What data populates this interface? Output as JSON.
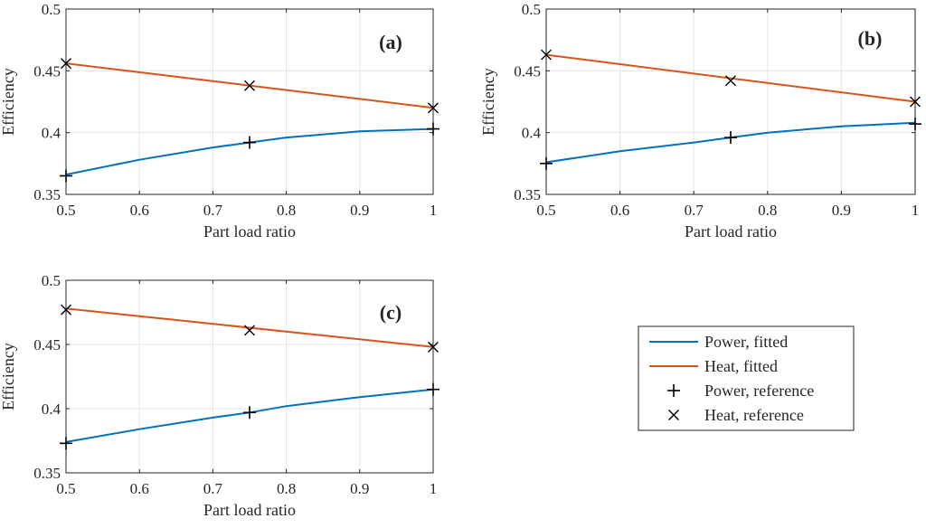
{
  "chart_data": [
    {
      "type": "line",
      "panel_label": "(a)",
      "xlabel": "Part load ratio",
      "ylabel": "Efficiency",
      "xlim": [
        0.5,
        1
      ],
      "ylim": [
        0.35,
        0.5
      ],
      "xticks": [
        0.5,
        0.6,
        0.7,
        0.8,
        0.9,
        1
      ],
      "xtick_labels": [
        "0.5",
        "0.6",
        "0.7",
        "0.8",
        "0.9",
        "1"
      ],
      "yticks": [
        0.35,
        0.4,
        0.45,
        0.5
      ],
      "ytick_labels": [
        "0.35",
        "0.4",
        "0.45",
        "0.5"
      ],
      "grid": true,
      "series": [
        {
          "name": "Power, fitted",
          "kind": "line",
          "x": [
            0.5,
            0.6,
            0.7,
            0.75,
            0.8,
            0.9,
            1.0
          ],
          "values": [
            0.366,
            0.378,
            0.388,
            0.392,
            0.396,
            0.401,
            0.403
          ]
        },
        {
          "name": "Heat, fitted",
          "kind": "line",
          "x": [
            0.5,
            1.0
          ],
          "values": [
            0.456,
            0.42
          ]
        },
        {
          "name": "Power, reference",
          "kind": "marker",
          "marker": "plus",
          "x": [
            0.5,
            0.75,
            1.0
          ],
          "values": [
            0.365,
            0.392,
            0.403
          ]
        },
        {
          "name": "Heat, reference",
          "kind": "marker",
          "marker": "cross",
          "x": [
            0.5,
            0.75,
            1.0
          ],
          "values": [
            0.456,
            0.438,
            0.42
          ]
        }
      ]
    },
    {
      "type": "line",
      "panel_label": "(b)",
      "xlabel": "Part load ratio",
      "ylabel": "Efficiency",
      "xlim": [
        0.5,
        1
      ],
      "ylim": [
        0.35,
        0.5
      ],
      "xticks": [
        0.5,
        0.6,
        0.7,
        0.8,
        0.9,
        1
      ],
      "xtick_labels": [
        "0.5",
        "0.6",
        "0.7",
        "0.8",
        "0.9",
        "1"
      ],
      "yticks": [
        0.35,
        0.4,
        0.45,
        0.5
      ],
      "ytick_labels": [
        "0.35",
        "0.4",
        "0.45",
        "0.5"
      ],
      "grid": true,
      "series": [
        {
          "name": "Power, fitted",
          "kind": "line",
          "x": [
            0.5,
            0.6,
            0.7,
            0.75,
            0.8,
            0.9,
            1.0
          ],
          "values": [
            0.376,
            0.385,
            0.392,
            0.396,
            0.4,
            0.405,
            0.408
          ]
        },
        {
          "name": "Heat, fitted",
          "kind": "line",
          "x": [
            0.5,
            1.0
          ],
          "values": [
            0.463,
            0.425
          ]
        },
        {
          "name": "Power, reference",
          "kind": "marker",
          "marker": "plus",
          "x": [
            0.5,
            0.75,
            1.0
          ],
          "values": [
            0.375,
            0.396,
            0.407
          ]
        },
        {
          "name": "Heat, reference",
          "kind": "marker",
          "marker": "cross",
          "x": [
            0.5,
            0.75,
            1.0
          ],
          "values": [
            0.463,
            0.442,
            0.425
          ]
        }
      ]
    },
    {
      "type": "line",
      "panel_label": "(c)",
      "xlabel": "Part load ratio",
      "ylabel": "Efficiency",
      "xlim": [
        0.5,
        1
      ],
      "ylim": [
        0.35,
        0.5
      ],
      "xticks": [
        0.5,
        0.6,
        0.7,
        0.8,
        0.9,
        1
      ],
      "xtick_labels": [
        "0.5",
        "0.6",
        "0.7",
        "0.8",
        "0.9",
        "1"
      ],
      "yticks": [
        0.35,
        0.4,
        0.45,
        0.5
      ],
      "ytick_labels": [
        "0.35",
        "0.4",
        "0.45",
        "0.5"
      ],
      "grid": true,
      "series": [
        {
          "name": "Power, fitted",
          "kind": "line",
          "x": [
            0.5,
            0.6,
            0.7,
            0.75,
            0.8,
            0.9,
            1.0
          ],
          "values": [
            0.374,
            0.384,
            0.393,
            0.397,
            0.402,
            0.409,
            0.415
          ]
        },
        {
          "name": "Heat, fitted",
          "kind": "line",
          "x": [
            0.5,
            1.0
          ],
          "values": [
            0.478,
            0.448
          ]
        },
        {
          "name": "Power, reference",
          "kind": "marker",
          "marker": "plus",
          "x": [
            0.5,
            0.75,
            1.0
          ],
          "values": [
            0.373,
            0.397,
            0.415
          ]
        },
        {
          "name": "Heat, reference",
          "kind": "marker",
          "marker": "cross",
          "x": [
            0.5,
            0.75,
            1.0
          ],
          "values": [
            0.477,
            0.461,
            0.448
          ]
        }
      ]
    }
  ],
  "legend": {
    "placement": "bottom-right",
    "entries": [
      {
        "label": "Power, fitted",
        "symbol": "line",
        "color": "#0072BD"
      },
      {
        "label": "Heat, fitted",
        "symbol": "line",
        "color": "#D95319"
      },
      {
        "label": "Power, reference",
        "symbol": "plus",
        "color": "#000000"
      },
      {
        "label": "Heat, reference",
        "symbol": "cross",
        "color": "#000000"
      }
    ]
  },
  "colors": {
    "power_line": "#0072BD",
    "heat_line": "#D95319",
    "marker": "#000000",
    "grid": "#e6e6e6",
    "axis": "#262626"
  }
}
